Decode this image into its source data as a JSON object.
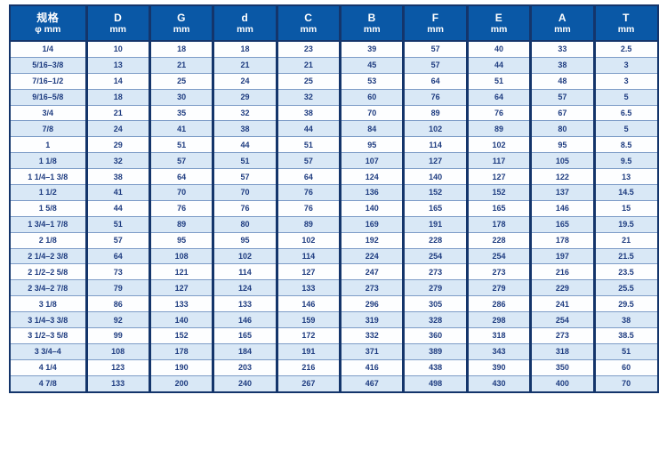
{
  "colors": {
    "header_bg": "#0a58a6",
    "header_text": "#ffffff",
    "row_stripe": "#d9e8f6",
    "row_plain": "#fdfeff",
    "cell_text": "#1e3c80",
    "grid_dark": "#14356b",
    "grid_light": "#7d9cc7",
    "page_bg": "#ffffff"
  },
  "table": {
    "columns": [
      {
        "label": "规格",
        "unit": "φ mm"
      },
      {
        "label": "D",
        "unit": "mm"
      },
      {
        "label": "G",
        "unit": "mm"
      },
      {
        "label": "d",
        "unit": "mm"
      },
      {
        "label": "C",
        "unit": "mm"
      },
      {
        "label": "B",
        "unit": "mm"
      },
      {
        "label": "F",
        "unit": "mm"
      },
      {
        "label": "E",
        "unit": "mm"
      },
      {
        "label": "A",
        "unit": "mm"
      },
      {
        "label": "T",
        "unit": "mm"
      }
    ],
    "rows": [
      [
        "1/4",
        "10",
        "18",
        "18",
        "23",
        "39",
        "57",
        "40",
        "33",
        "2.5"
      ],
      [
        "5/16–3/8",
        "13",
        "21",
        "21",
        "21",
        "45",
        "57",
        "44",
        "38",
        "3"
      ],
      [
        "7/16–1/2",
        "14",
        "25",
        "24",
        "25",
        "53",
        "64",
        "51",
        "48",
        "3"
      ],
      [
        "9/16–5/8",
        "18",
        "30",
        "29",
        "32",
        "60",
        "76",
        "64",
        "57",
        "5"
      ],
      [
        "3/4",
        "21",
        "35",
        "32",
        "38",
        "70",
        "89",
        "76",
        "67",
        "6.5"
      ],
      [
        "7/8",
        "24",
        "41",
        "38",
        "44",
        "84",
        "102",
        "89",
        "80",
        "5"
      ],
      [
        "1",
        "29",
        "51",
        "44",
        "51",
        "95",
        "114",
        "102",
        "95",
        "8.5"
      ],
      [
        "1 1/8",
        "32",
        "57",
        "51",
        "57",
        "107",
        "127",
        "117",
        "105",
        "9.5"
      ],
      [
        "1 1/4–1 3/8",
        "38",
        "64",
        "57",
        "64",
        "124",
        "140",
        "127",
        "122",
        "13"
      ],
      [
        "1 1/2",
        "41",
        "70",
        "70",
        "76",
        "136",
        "152",
        "152",
        "137",
        "14.5"
      ],
      [
        "1 5/8",
        "44",
        "76",
        "76",
        "76",
        "140",
        "165",
        "165",
        "146",
        "15"
      ],
      [
        "1 3/4–1 7/8",
        "51",
        "89",
        "80",
        "89",
        "169",
        "191",
        "178",
        "165",
        "19.5"
      ],
      [
        "2 1/8",
        "57",
        "95",
        "95",
        "102",
        "192",
        "228",
        "228",
        "178",
        "21"
      ],
      [
        "2 1/4–2 3/8",
        "64",
        "108",
        "102",
        "114",
        "224",
        "254",
        "254",
        "197",
        "21.5"
      ],
      [
        "2 1/2–2 5/8",
        "73",
        "121",
        "114",
        "127",
        "247",
        "273",
        "273",
        "216",
        "23.5"
      ],
      [
        "2 3/4–2 7/8",
        "79",
        "127",
        "124",
        "133",
        "273",
        "279",
        "279",
        "229",
        "25.5"
      ],
      [
        "3 1/8",
        "86",
        "133",
        "133",
        "146",
        "296",
        "305",
        "286",
        "241",
        "29.5"
      ],
      [
        "3 1/4–3 3/8",
        "92",
        "140",
        "146",
        "159",
        "319",
        "328",
        "298",
        "254",
        "38"
      ],
      [
        "3 1/2–3 5/8",
        "99",
        "152",
        "165",
        "172",
        "332",
        "360",
        "318",
        "273",
        "38.5"
      ],
      [
        "3 3/4–4",
        "108",
        "178",
        "184",
        "191",
        "371",
        "389",
        "343",
        "318",
        "51"
      ],
      [
        "4 1/4",
        "123",
        "190",
        "203",
        "216",
        "416",
        "438",
        "390",
        "350",
        "60"
      ],
      [
        "4 7/8",
        "133",
        "200",
        "240",
        "267",
        "467",
        "498",
        "430",
        "400",
        "70"
      ]
    ]
  }
}
